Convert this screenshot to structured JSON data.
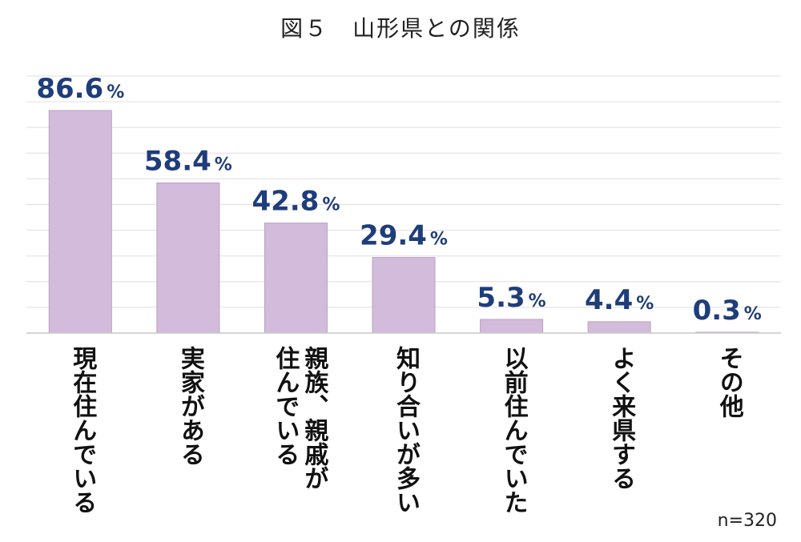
{
  "chart_data": {
    "type": "bar",
    "title": "図５　山形県との関係",
    "categories": [
      "現在住んでいる",
      "実家がある",
      "親族、親戚が\n住んでいる",
      "知り合いが多い",
      "以前住んでいた",
      "よく来県する",
      "その他"
    ],
    "values": [
      86.6,
      58.4,
      42.8,
      29.4,
      5.3,
      4.4,
      0.3
    ],
    "value_labels": [
      "86.6",
      "58.4",
      "42.8",
      "29.4",
      "5.3",
      "4.4",
      "0.3"
    ],
    "unit": "%",
    "ylim": [
      0,
      100
    ],
    "grid": true,
    "bar_color": "#d3bcdb",
    "label_color": "#1f3d7a",
    "note": "n=320"
  }
}
